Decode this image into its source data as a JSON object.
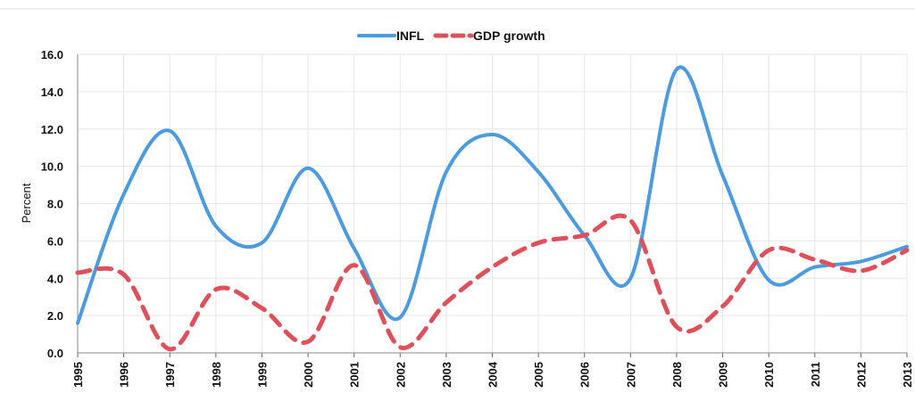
{
  "chart_data": {
    "type": "line",
    "title": "",
    "xlabel": "",
    "ylabel": "Percent",
    "x": [
      "1995",
      "1996",
      "1997",
      "1998",
      "1999",
      "2000",
      "2001",
      "2002",
      "2003",
      "2004",
      "2005",
      "2006",
      "2007",
      "2008",
      "2009",
      "2010",
      "2011",
      "2012",
      "2013"
    ],
    "ylim": [
      0,
      16
    ],
    "yticks": [
      "0.0",
      "2.0",
      "4.0",
      "6.0",
      "8.0",
      "10.0",
      "12.0",
      "14.0",
      "16.0"
    ],
    "grid": true,
    "legend_position": "top-center",
    "series": [
      {
        "name": "INFL",
        "color": "#4a9be0",
        "dash": "solid",
        "values": [
          1.6,
          8.5,
          11.9,
          6.8,
          5.9,
          9.9,
          5.6,
          1.9,
          9.7,
          11.7,
          9.7,
          6.3,
          4.0,
          15.2,
          9.5,
          3.9,
          4.6,
          4.9,
          5.7
        ]
      },
      {
        "name": "GDP growth",
        "color": "#e0505a",
        "dash": "dashed",
        "values": [
          4.3,
          4.2,
          0.2,
          3.4,
          2.4,
          0.6,
          4.7,
          0.3,
          2.7,
          4.6,
          5.9,
          6.3,
          7.1,
          1.4,
          2.5,
          5.5,
          5.0,
          4.4,
          5.5
        ]
      }
    ]
  }
}
